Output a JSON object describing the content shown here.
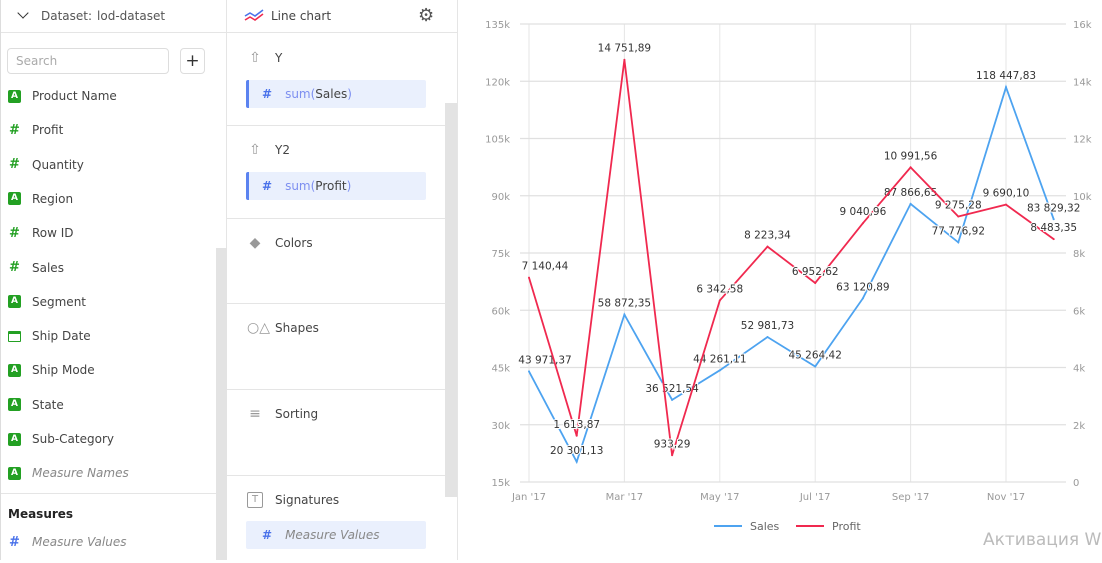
{
  "left_panel": {
    "dataset_label": "Dataset:",
    "dataset_name": "lod-dataset",
    "search_placeholder": "Search",
    "add_label": "+",
    "fields": [
      {
        "label": "Product Name",
        "type": "string"
      },
      {
        "label": "Profit",
        "type": "number"
      },
      {
        "label": "Quantity",
        "type": "number"
      },
      {
        "label": "Region",
        "type": "string"
      },
      {
        "label": "Row ID",
        "type": "number"
      },
      {
        "label": "Sales",
        "type": "number"
      },
      {
        "label": "Segment",
        "type": "string"
      },
      {
        "label": "Ship Date",
        "type": "date"
      },
      {
        "label": "Ship Mode",
        "type": "string"
      },
      {
        "label": "State",
        "type": "string"
      },
      {
        "label": "Sub-Category",
        "type": "string"
      },
      {
        "label": "Measure Names",
        "type": "string",
        "italic": true
      }
    ],
    "measures_title": "Measures",
    "measures": [
      {
        "label": "Measure Values",
        "type": "number",
        "italic": true
      }
    ]
  },
  "mid_panel": {
    "chart_type": "Line chart",
    "sections": {
      "y": {
        "title": "Y",
        "agg": "sum(",
        "field": "Sales",
        "close": ")"
      },
      "y2": {
        "title": "Y2",
        "agg": "sum(",
        "field": "Profit",
        "close": ")"
      },
      "colors": {
        "title": "Colors"
      },
      "shapes": {
        "title": "Shapes"
      },
      "sorting": {
        "title": "Sorting"
      },
      "signatures": {
        "title": "Signatures",
        "item": "Measure Values"
      }
    }
  },
  "watermark": "Активация Wi",
  "chart_data": {
    "type": "line",
    "categories": [
      "Jan '17",
      "Feb '17",
      "Mar '17",
      "Apr '17",
      "May '17",
      "Jun '17",
      "Jul '17",
      "Aug '17",
      "Sep '17",
      "Oct '17",
      "Nov '17",
      "Dec '17"
    ],
    "x_tick_labels": [
      "Jan '17",
      "Mar '17",
      "May '17",
      "Jul '17",
      "Sep '17",
      "Nov '17"
    ],
    "y_left": {
      "range": [
        15000,
        135000
      ],
      "ticks": [
        "15k",
        "30k",
        "45k",
        "60k",
        "75k",
        "90k",
        "105k",
        "120k",
        "135k"
      ]
    },
    "y_right": {
      "range": [
        0,
        16000
      ],
      "ticks": [
        "0",
        "2k",
        "4k",
        "6k",
        "8k",
        "10k",
        "12k",
        "14k",
        "16k"
      ]
    },
    "grid": true,
    "legend": "bottom",
    "series": [
      {
        "name": "Sales",
        "axis": "left",
        "color": "#4da3f0",
        "values": [
          43971.37,
          20301.13,
          58872.35,
          36521.54,
          44261.11,
          52981.73,
          45264.42,
          63120.89,
          87866.65,
          77776.92,
          118447.83,
          83829.32
        ],
        "labels": [
          "43 971,37",
          "20 301,13",
          "58 872,35",
          "36 521,54",
          "44 261,11",
          "52 981,73",
          "45 264,42",
          "63 120,89",
          "87 866,65",
          "77 776,92",
          "118 447,83",
          "83 829,32"
        ]
      },
      {
        "name": "Profit",
        "axis": "right",
        "color": "#f0294f",
        "values": [
          7140.44,
          1613.87,
          14751.89,
          933.29,
          6342.58,
          8223.34,
          6952.62,
          9040.96,
          10991.56,
          9275.28,
          9690.1,
          8483.35
        ],
        "labels": [
          "7 140,44",
          "1 613,87",
          "14 751,89",
          "933,29",
          "6 342,58",
          "8 223,34",
          "6 952,62",
          "9 040,96",
          "10 991,56",
          "9 275,28",
          "9 690,10",
          "8 483,35"
        ]
      }
    ]
  }
}
